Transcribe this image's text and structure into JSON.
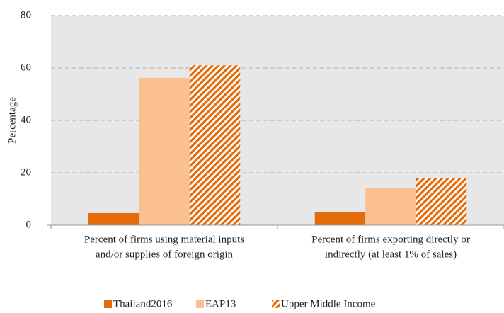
{
  "chart_data": {
    "type": "bar",
    "y_label": "Percentage",
    "categories": [
      [
        "Percent of firms using material inputs",
        "and/or supplies of foreign origin"
      ],
      [
        "Percent of firms exporting directly or",
        "indirectly (at least 1% of sales)"
      ]
    ],
    "series": [
      {
        "name": "Thailand2016",
        "color": "#e36c0a",
        "values": [
          4.6,
          5.1
        ]
      },
      {
        "name": "EAP13",
        "color": "#fac090",
        "values": [
          56.2,
          14.3
        ]
      },
      {
        "name": "Upper Middle Income",
        "color": "#e36c0a",
        "pattern": "hatch",
        "values": [
          61,
          18.1
        ]
      }
    ],
    "ylim": [
      0,
      80
    ],
    "yticks": [
      0,
      20,
      40,
      60,
      80
    ],
    "grid": true,
    "legend": "bottom"
  }
}
